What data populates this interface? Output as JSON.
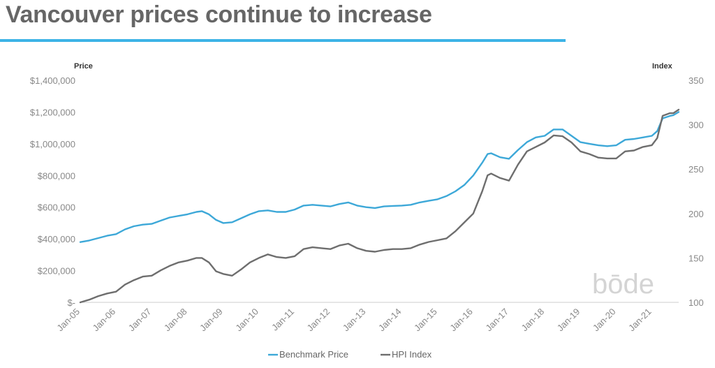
{
  "title": "Vancouver prices continue to increase",
  "colors": {
    "accent": "#3db3e6",
    "series1": "#3da8d8",
    "series2": "#6e6e6e",
    "title": "#666666"
  },
  "watermark": "bōde",
  "chart_data": {
    "type": "line",
    "title": "",
    "ylabel_left": "Price",
    "ylabel_right": "Index",
    "xlim": [
      2005.0,
      2021.75
    ],
    "ylim_left": [
      0,
      1400000
    ],
    "ylim_right": [
      100,
      350
    ],
    "yticks_left": [
      0,
      200000,
      400000,
      600000,
      800000,
      1000000,
      1200000,
      1400000
    ],
    "yticks_left_labels": [
      "$-",
      "$200,000",
      "$400,000",
      "$600,000",
      "$800,000",
      "$1,000,000",
      "$1,200,000",
      "$1,400,000"
    ],
    "yticks_right": [
      100,
      150,
      200,
      250,
      300,
      350
    ],
    "yticks_right_labels": [
      "100",
      "150",
      "200",
      "250",
      "300",
      "350"
    ],
    "xticks": [
      2005,
      2006,
      2007,
      2008,
      2009,
      2010,
      2011,
      2012,
      2013,
      2014,
      2015,
      2016,
      2017,
      2018,
      2019,
      2020,
      2021
    ],
    "xtick_labels": [
      "Jan-05",
      "Jan-06",
      "Jan-07",
      "Jan-08",
      "Jan-09",
      "Jan-10",
      "Jan-11",
      "Jan-12",
      "Jan-13",
      "Jan-14",
      "Jan-15",
      "Jan-16",
      "Jan-17",
      "Jan-18",
      "Jan-19",
      "Jan-20",
      "Jan-21"
    ],
    "grid": false,
    "legend_position": "bottom",
    "series": [
      {
        "name": "Benchmark Price",
        "axis": "left",
        "x": [
          2005.0,
          2005.25,
          2005.5,
          2005.75,
          2006.0,
          2006.25,
          2006.5,
          2006.75,
          2007.0,
          2007.25,
          2007.5,
          2007.75,
          2008.0,
          2008.25,
          2008.4,
          2008.6,
          2008.8,
          2009.0,
          2009.25,
          2009.5,
          2009.75,
          2010.0,
          2010.25,
          2010.5,
          2010.75,
          2011.0,
          2011.25,
          2011.5,
          2011.75,
          2012.0,
          2012.25,
          2012.5,
          2012.75,
          2013.0,
          2013.25,
          2013.5,
          2013.75,
          2014.0,
          2014.25,
          2014.5,
          2014.75,
          2015.0,
          2015.25,
          2015.5,
          2015.75,
          2016.0,
          2016.25,
          2016.4,
          2016.5,
          2016.75,
          2017.0,
          2017.25,
          2017.5,
          2017.75,
          2018.0,
          2018.25,
          2018.5,
          2018.75,
          2019.0,
          2019.25,
          2019.5,
          2019.75,
          2020.0,
          2020.25,
          2020.5,
          2020.75,
          2021.0,
          2021.15,
          2021.3,
          2021.5,
          2021.6,
          2021.75
        ],
        "values": [
          380000,
          390000,
          405000,
          420000,
          430000,
          460000,
          480000,
          490000,
          495000,
          515000,
          535000,
          545000,
          555000,
          570000,
          575000,
          555000,
          520000,
          500000,
          505000,
          530000,
          555000,
          575000,
          580000,
          570000,
          570000,
          585000,
          610000,
          615000,
          610000,
          605000,
          620000,
          630000,
          610000,
          600000,
          595000,
          605000,
          608000,
          610000,
          615000,
          630000,
          640000,
          650000,
          670000,
          700000,
          740000,
          800000,
          880000,
          935000,
          940000,
          915000,
          905000,
          960000,
          1010000,
          1040000,
          1050000,
          1090000,
          1090000,
          1050000,
          1010000,
          1000000,
          990000,
          985000,
          990000,
          1025000,
          1030000,
          1040000,
          1050000,
          1080000,
          1160000,
          1175000,
          1180000,
          1200000
        ]
      },
      {
        "name": "HPI Index",
        "axis": "right",
        "x": [
          2005.0,
          2005.25,
          2005.5,
          2005.75,
          2006.0,
          2006.25,
          2006.5,
          2006.75,
          2007.0,
          2007.25,
          2007.5,
          2007.75,
          2008.0,
          2008.25,
          2008.4,
          2008.6,
          2008.8,
          2009.0,
          2009.25,
          2009.5,
          2009.75,
          2010.0,
          2010.25,
          2010.5,
          2010.75,
          2011.0,
          2011.25,
          2011.5,
          2011.75,
          2012.0,
          2012.25,
          2012.5,
          2012.75,
          2013.0,
          2013.25,
          2013.5,
          2013.75,
          2014.0,
          2014.25,
          2014.5,
          2014.75,
          2015.0,
          2015.25,
          2015.5,
          2015.75,
          2016.0,
          2016.25,
          2016.4,
          2016.5,
          2016.75,
          2017.0,
          2017.25,
          2017.5,
          2017.75,
          2018.0,
          2018.25,
          2018.5,
          2018.75,
          2019.0,
          2019.25,
          2019.5,
          2019.75,
          2020.0,
          2020.25,
          2020.5,
          2020.75,
          2021.0,
          2021.15,
          2021.3,
          2021.5,
          2021.6,
          2021.75
        ],
        "values": [
          100,
          103,
          107,
          110,
          112,
          120,
          125,
          129,
          130,
          136,
          141,
          145,
          147,
          150,
          150,
          145,
          135,
          132,
          130,
          137,
          145,
          150,
          154,
          151,
          150,
          152,
          160,
          162,
          161,
          160,
          164,
          166,
          161,
          158,
          157,
          159,
          160,
          160,
          161,
          165,
          168,
          170,
          172,
          180,
          190,
          200,
          225,
          243,
          245,
          240,
          237,
          255,
          270,
          275,
          280,
          288,
          287,
          280,
          270,
          267,
          263,
          262,
          262,
          270,
          271,
          275,
          277,
          285,
          310,
          313,
          313,
          317
        ]
      }
    ]
  }
}
